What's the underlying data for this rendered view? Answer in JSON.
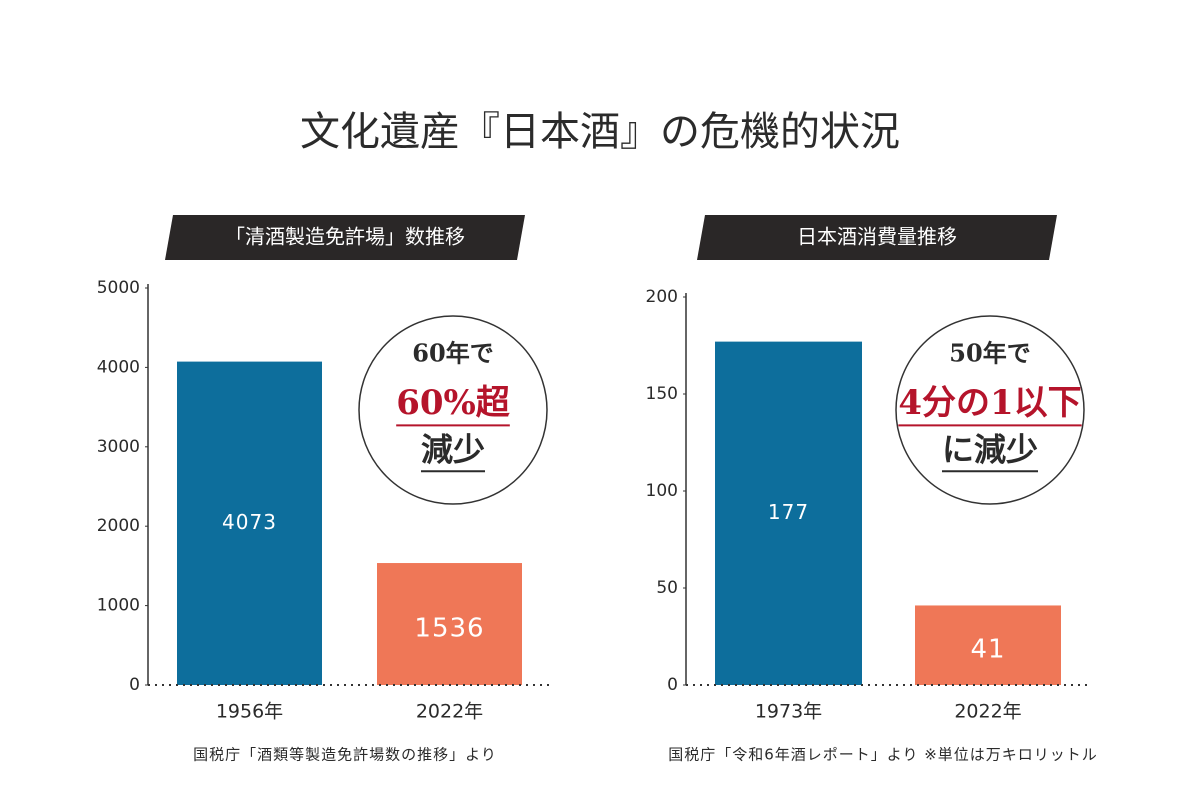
{
  "title": "文化遺産『日本酒』の危機的状況",
  "chart_data": [
    {
      "type": "bar",
      "title": "「清酒製造免許場」数推移",
      "categories": [
        "1956年",
        "2022年"
      ],
      "values": [
        4073,
        1536
      ],
      "colors": [
        "#0d6e9c",
        "#ef7757"
      ],
      "ylim": [
        0,
        5000
      ],
      "yticks": [
        0,
        1000,
        2000,
        3000,
        4000,
        5000
      ],
      "annotation": [
        "60年で",
        "60%超",
        "減少"
      ],
      "source": "国税庁「酒類等製造免許場数の推移」より"
    },
    {
      "type": "bar",
      "title": "日本酒消費量推移",
      "categories": [
        "1973年",
        "2022年"
      ],
      "values": [
        177,
        41
      ],
      "colors": [
        "#0d6e9c",
        "#ef7757"
      ],
      "ylim": [
        0,
        200
      ],
      "yticks": [
        0,
        50,
        100,
        150,
        200
      ],
      "annotation": [
        "50年で",
        "4分の1以下",
        "に減少"
      ],
      "source": "国税庁「令和6年酒レポート」より ※単位は万キロリットル"
    }
  ]
}
